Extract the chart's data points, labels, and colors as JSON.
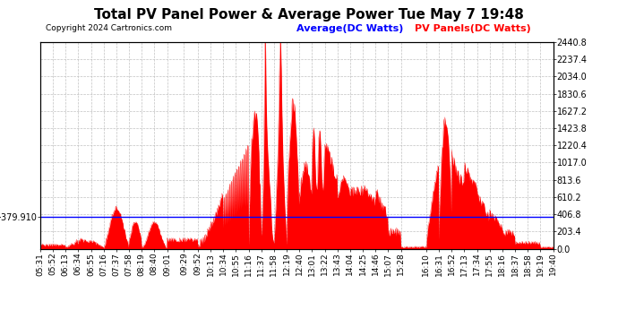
{
  "title": "Total PV Panel Power & Average Power Tue May 7 19:48",
  "copyright": "Copyright 2024 Cartronics.com",
  "legend_avg": "Average(DC Watts)",
  "legend_pv": "PV Panels(DC Watts)",
  "avg_value": 379.91,
  "y_max": 2440.8,
  "y_min": 0.0,
  "y_ticks_right": [
    0.0,
    203.4,
    406.8,
    610.2,
    813.6,
    1017.0,
    1220.4,
    1423.8,
    1627.2,
    1830.6,
    2034.0,
    2237.4,
    2440.8
  ],
  "x_tick_labels": [
    "05:31",
    "05:52",
    "06:13",
    "06:34",
    "06:55",
    "07:16",
    "07:37",
    "07:58",
    "08:19",
    "08:40",
    "09:01",
    "09:29",
    "09:52",
    "10:13",
    "10:34",
    "10:55",
    "11:16",
    "11:37",
    "11:58",
    "12:19",
    "12:40",
    "13:01",
    "13:22",
    "13:43",
    "14:04",
    "14:25",
    "14:46",
    "15:07",
    "15:28",
    "16:10",
    "16:31",
    "16:52",
    "17:13",
    "17:34",
    "17:55",
    "18:16",
    "18:37",
    "18:58",
    "19:19",
    "19:40"
  ],
  "background_color": "#ffffff",
  "plot_bg_color": "#ffffff",
  "grid_color": "#bbbbbb",
  "fill_color": "#ff0000",
  "line_color": "#ff0000",
  "avg_line_color": "#0000ff",
  "title_color": "#000000",
  "copyright_color": "#000000",
  "avg_legend_color": "#0000ff",
  "pv_legend_color": "#ff0000",
  "title_fontsize": 11,
  "tick_fontsize": 7,
  "legend_fontsize": 8
}
